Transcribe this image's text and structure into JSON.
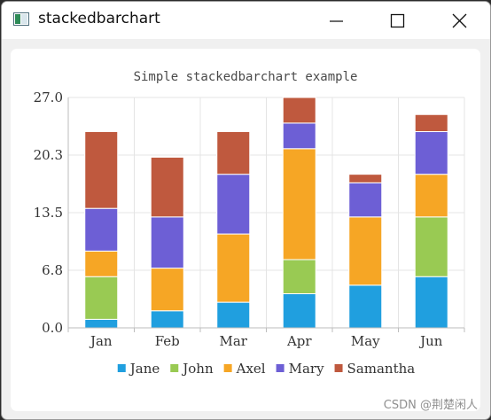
{
  "window": {
    "title": "stackedbarchart"
  },
  "watermark": "CSDN @荆楚闲人",
  "chart_data": {
    "type": "bar",
    "stacked": true,
    "title": "Simple stackedbarchart example",
    "xlabel": "",
    "ylabel": "",
    "categories": [
      "Jan",
      "Feb",
      "Mar",
      "Apr",
      "May",
      "Jun"
    ],
    "ylim": [
      0,
      27
    ],
    "yticks": [
      "0.0",
      "6.8",
      "13.5",
      "20.3",
      "27.0"
    ],
    "grid": true,
    "legend_position": "bottom",
    "series": [
      {
        "name": "Jane",
        "color": "#209fdf",
        "values": [
          1,
          2,
          3,
          4,
          5,
          6
        ]
      },
      {
        "name": "John",
        "color": "#99ca53",
        "values": [
          5,
          0,
          0,
          4,
          0,
          7
        ]
      },
      {
        "name": "Axel",
        "color": "#f6a625",
        "values": [
          3,
          5,
          8,
          13,
          8,
          5
        ]
      },
      {
        "name": "Mary",
        "color": "#6d5fd5",
        "values": [
          5,
          6,
          7,
          3,
          4,
          5
        ]
      },
      {
        "name": "Samantha",
        "color": "#bf593e",
        "values": [
          9,
          7,
          5,
          3,
          1,
          2
        ]
      }
    ]
  }
}
